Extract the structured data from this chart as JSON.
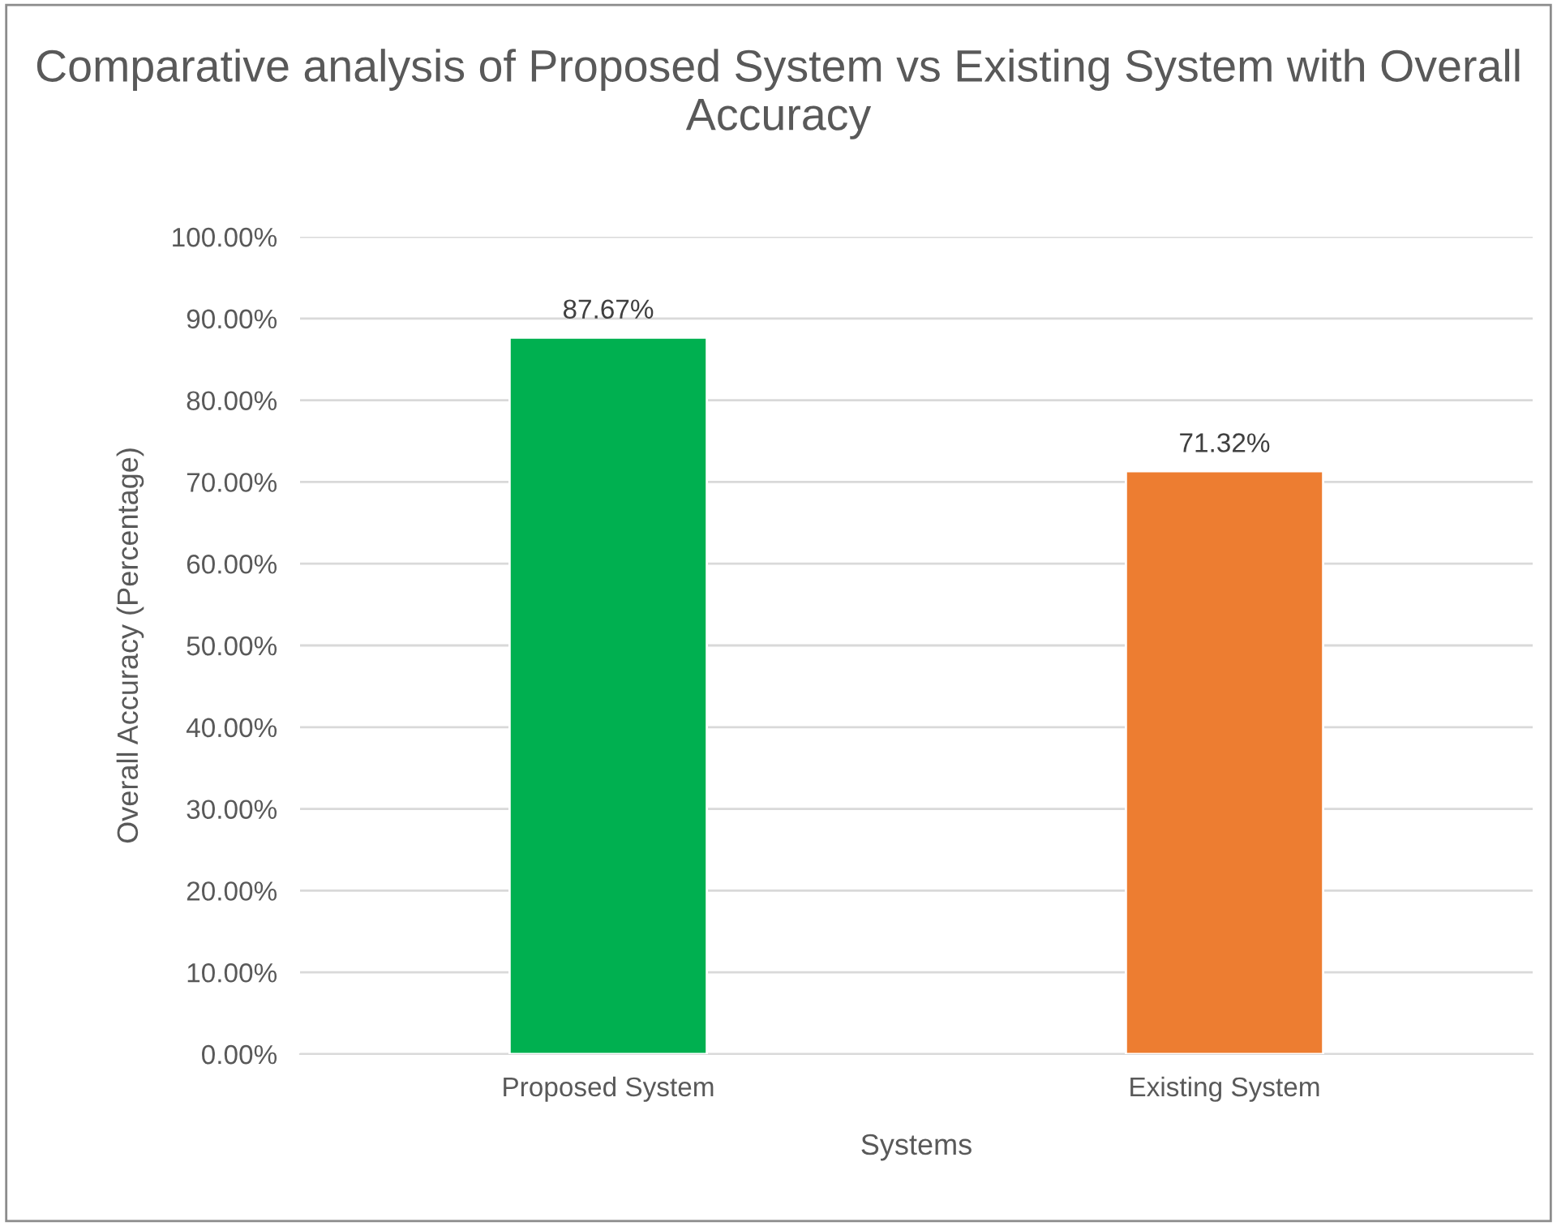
{
  "chart_data": {
    "type": "bar",
    "title": "Comparative analysis of Proposed System vs Existing System with Overall Accuracy",
    "xlabel": "Systems",
    "ylabel": "Overall Accuracy (Percentage)",
    "categories": [
      "Proposed System",
      "Existing System"
    ],
    "values": [
      87.67,
      71.32
    ],
    "colors": [
      "#00b050",
      "#ed7d31"
    ],
    "value_labels": [
      "87.67%",
      "71.32%"
    ],
    "ylim": [
      0,
      100
    ],
    "yticks": [
      {
        "value": 0,
        "label": "0.00%"
      },
      {
        "value": 10,
        "label": "10.00%"
      },
      {
        "value": 20,
        "label": "20.00%"
      },
      {
        "value": 30,
        "label": "30.00%"
      },
      {
        "value": 40,
        "label": "40.00%"
      },
      {
        "value": 50,
        "label": "50.00%"
      },
      {
        "value": 60,
        "label": "60.00%"
      },
      {
        "value": 70,
        "label": "70.00%"
      },
      {
        "value": 80,
        "label": "80.00%"
      },
      {
        "value": 90,
        "label": "90.00%"
      },
      {
        "value": 100,
        "label": "100.00%"
      }
    ],
    "grid": "y",
    "legend": false
  }
}
